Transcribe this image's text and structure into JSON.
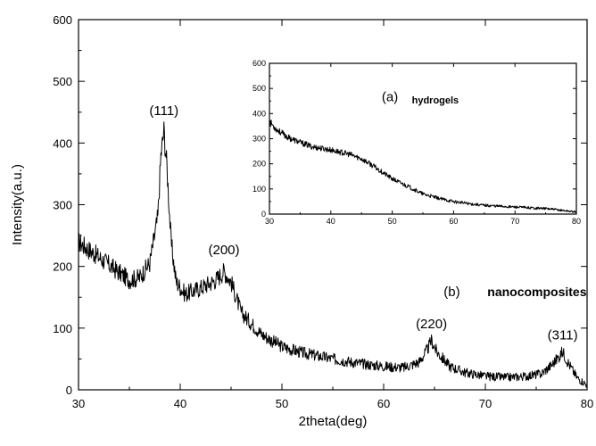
{
  "chart_data": [
    {
      "type": "line",
      "title": "",
      "xlabel": "2theta(deg)",
      "ylabel": "Intensity(a.u.)",
      "xlim": [
        30,
        80
      ],
      "ylim": [
        0,
        600
      ],
      "x_ticks": [
        "30",
        "40",
        "50",
        "60",
        "70",
        "80"
      ],
      "y_ticks": [
        "0",
        "100",
        "200",
        "300",
        "400",
        "500",
        "600"
      ],
      "grid": false,
      "series": [
        {
          "x": [
            30,
            32,
            34,
            35,
            36,
            37,
            37.8,
            38.1,
            38.4,
            38.7,
            39.1,
            39.6,
            40.5,
            42,
            43.5,
            44.3,
            45,
            46,
            48,
            50,
            52,
            55,
            58,
            60,
            62,
            63.5,
            64.3,
            64.7,
            65.2,
            66.5,
            68,
            70,
            72,
            74,
            75.5,
            76.5,
            77.3,
            77.6,
            78,
            79,
            80
          ],
          "values": [
            240,
            215,
            190,
            178,
            182,
            205,
            280,
            380,
            420,
            360,
            240,
            175,
            155,
            165,
            178,
            192,
            175,
            125,
            90,
            70,
            60,
            50,
            42,
            38,
            36,
            45,
            65,
            80,
            62,
            38,
            28,
            22,
            20,
            22,
            26,
            40,
            55,
            62,
            48,
            20,
            8
          ]
        }
      ],
      "annotations": [
        {
          "text": "(111)",
          "x": 38.4,
          "y": 445
        },
        {
          "text": "(200)",
          "x": 44.3,
          "y": 220
        },
        {
          "text": "(220)",
          "x": 64.7,
          "y": 100
        },
        {
          "text": "(311)",
          "x": 77.6,
          "y": 82
        },
        {
          "text": "(b)",
          "x": 65.9,
          "y": 152
        },
        {
          "text": "nanocomposites",
          "x": 70.2,
          "y": 152
        }
      ]
    },
    {
      "type": "line",
      "title": "",
      "xlabel": "",
      "ylabel": "",
      "xlim": [
        30,
        80
      ],
      "ylim": [
        0,
        600
      ],
      "x_ticks": [
        "30",
        "40",
        "50",
        "60",
        "70",
        "80"
      ],
      "y_ticks": [
        "0",
        "100",
        "200",
        "300",
        "400",
        "500",
        "600"
      ],
      "grid": false,
      "series": [
        {
          "x": [
            30,
            31,
            33,
            35,
            37,
            40,
            43,
            45,
            47,
            50,
            53,
            55,
            58,
            60,
            63,
            65,
            70,
            75,
            78,
            80
          ],
          "values": [
            370,
            340,
            305,
            285,
            268,
            255,
            238,
            220,
            190,
            140,
            105,
            80,
            60,
            50,
            40,
            35,
            28,
            22,
            14,
            8
          ]
        }
      ],
      "annotations": [
        {
          "text": "(a)",
          "x": 48.3,
          "y": 450
        },
        {
          "text": "hydrogels",
          "x": 53.2,
          "y": 440
        }
      ]
    }
  ]
}
